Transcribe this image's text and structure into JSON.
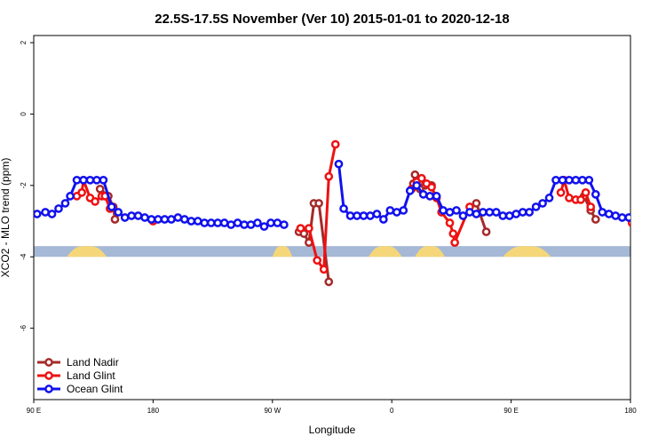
{
  "chart_data": {
    "type": "line",
    "title": "22.5S-17.5S November (Ver 10)   2015-01-01 to 2020-12-18",
    "xlabel": "Longitude",
    "ylabel": "XCO2 - MLO trend (ppm)",
    "xlim": [
      0,
      360
    ],
    "ylim": [
      -8,
      2.2
    ],
    "x_ticks": [
      {
        "value": 0,
        "label": "90 E"
      },
      {
        "value": 72,
        "label": "180"
      },
      {
        "value": 144,
        "label": "90 W"
      },
      {
        "value": 216,
        "label": "0"
      },
      {
        "value": 288,
        "label": "90 E"
      },
      {
        "value": 360,
        "label": "180"
      }
    ],
    "y_ticks": [
      {
        "value": 2,
        "label": "2"
      },
      {
        "value": 0,
        "label": "0"
      },
      {
        "value": -2,
        "label": "-2"
      },
      {
        "value": -4,
        "label": "-4"
      },
      {
        "value": -6,
        "label": "-6"
      }
    ],
    "grid": false,
    "legend_position": "bottom-left",
    "land_mask_colors": {
      "ocean": "#a5b8d6",
      "land": "#f5d77a"
    },
    "series": [
      {
        "name": "Land Nadir",
        "color": "#a52a2a",
        "points": [
          [
            40,
            -2.1
          ],
          [
            45,
            -2.3
          ],
          [
            48,
            -2.6
          ],
          [
            49,
            -2.95
          ],
          [
            160,
            -3.3
          ],
          [
            163,
            -3.35
          ],
          [
            166,
            -3.6
          ],
          [
            169,
            -2.5
          ],
          [
            172,
            -2.5
          ],
          [
            178,
            -4.7
          ],
          [
            229,
            -1.95
          ],
          [
            230,
            -1.7
          ],
          [
            233,
            -2.1
          ],
          [
            236,
            -2.0
          ],
          [
            240,
            -2.0
          ],
          [
            242,
            -2.3
          ],
          [
            267,
            -2.5
          ],
          [
            273,
            -3.3
          ],
          [
            332,
            -2.3
          ],
          [
            336,
            -2.7
          ],
          [
            339,
            -2.95
          ],
          [
            361,
            -3.05
          ]
        ]
      },
      {
        "name": "Land Glint",
        "color": "#ee1111",
        "points": [
          [
            26,
            -2.3
          ],
          [
            29,
            -2.2
          ],
          [
            30,
            -1.85
          ],
          [
            34,
            -2.35
          ],
          [
            37,
            -2.45
          ],
          [
            41,
            -2.3
          ],
          [
            43,
            -2.3
          ],
          [
            46,
            -2.65
          ],
          [
            72,
            -3.0
          ],
          [
            161,
            -3.2
          ],
          [
            166,
            -3.2
          ],
          [
            171,
            -4.1
          ],
          [
            175,
            -4.35
          ],
          [
            178,
            -1.75
          ],
          [
            182,
            -0.85
          ],
          [
            228,
            -2.1
          ],
          [
            231,
            -1.9
          ],
          [
            234,
            -1.8
          ],
          [
            237,
            -1.95
          ],
          [
            240,
            -2.05
          ],
          [
            243,
            -2.35
          ],
          [
            246,
            -2.75
          ],
          [
            251,
            -3.05
          ],
          [
            253,
            -3.35
          ],
          [
            254,
            -3.6
          ],
          [
            263,
            -2.6
          ],
          [
            318,
            -2.2
          ],
          [
            320,
            -1.85
          ],
          [
            323,
            -2.35
          ],
          [
            327,
            -2.4
          ],
          [
            330,
            -2.4
          ],
          [
            333,
            -2.2
          ],
          [
            336,
            -2.6
          ],
          [
            361,
            -3.05
          ]
        ]
      },
      {
        "name": "Ocean Glint",
        "color": "#1111ee",
        "points": [
          [
            2,
            -2.8
          ],
          [
            7,
            -2.75
          ],
          [
            11,
            -2.8
          ],
          [
            15,
            -2.65
          ],
          [
            19,
            -2.5
          ],
          [
            22,
            -2.3
          ],
          [
            26,
            -1.85
          ],
          [
            30,
            -1.85
          ],
          [
            34,
            -1.85
          ],
          [
            38,
            -1.85
          ],
          [
            42,
            -1.85
          ],
          [
            47,
            -2.6
          ],
          [
            51,
            -2.75
          ],
          [
            55,
            -2.9
          ],
          [
            59,
            -2.85
          ],
          [
            63,
            -2.85
          ],
          [
            67,
            -2.9
          ],
          [
            71,
            -2.95
          ],
          [
            75,
            -2.95
          ],
          [
            79,
            -2.95
          ],
          [
            83,
            -2.95
          ],
          [
            87,
            -2.9
          ],
          [
            91,
            -2.95
          ],
          [
            95,
            -3.0
          ],
          [
            99,
            -3.0
          ],
          [
            103,
            -3.05
          ],
          [
            107,
            -3.05
          ],
          [
            111,
            -3.05
          ],
          [
            115,
            -3.05
          ],
          [
            119,
            -3.1
          ],
          [
            123,
            -3.05
          ],
          [
            127,
            -3.1
          ],
          [
            131,
            -3.1
          ],
          [
            135,
            -3.05
          ],
          [
            139,
            -3.15
          ],
          [
            143,
            -3.05
          ],
          [
            147,
            -3.05
          ],
          [
            151,
            -3.1
          ],
          [
            184,
            -1.4
          ],
          [
            187,
            -2.65
          ],
          [
            191,
            -2.85
          ],
          [
            195,
            -2.85
          ],
          [
            199,
            -2.85
          ],
          [
            203,
            -2.85
          ],
          [
            207,
            -2.8
          ],
          [
            211,
            -2.95
          ],
          [
            215,
            -2.7
          ],
          [
            219,
            -2.75
          ],
          [
            223,
            -2.7
          ],
          [
            227,
            -2.15
          ],
          [
            231,
            -2.0
          ],
          [
            235,
            -2.25
          ],
          [
            239,
            -2.3
          ],
          [
            243,
            -2.3
          ],
          [
            247,
            -2.7
          ],
          [
            251,
            -2.75
          ],
          [
            255,
            -2.7
          ],
          [
            259,
            -2.85
          ],
          [
            263,
            -2.75
          ],
          [
            267,
            -2.8
          ],
          [
            271,
            -2.75
          ],
          [
            275,
            -2.75
          ],
          [
            279,
            -2.75
          ],
          [
            283,
            -2.85
          ],
          [
            287,
            -2.85
          ],
          [
            291,
            -2.8
          ],
          [
            295,
            -2.75
          ],
          [
            299,
            -2.75
          ],
          [
            303,
            -2.6
          ],
          [
            307,
            -2.5
          ],
          [
            311,
            -2.35
          ],
          [
            315,
            -1.85
          ],
          [
            319,
            -1.85
          ],
          [
            323,
            -1.85
          ],
          [
            327,
            -1.85
          ],
          [
            331,
            -1.85
          ],
          [
            335,
            -1.85
          ],
          [
            339,
            -2.25
          ],
          [
            343,
            -2.75
          ],
          [
            347,
            -2.8
          ],
          [
            351,
            -2.85
          ],
          [
            355,
            -2.9
          ],
          [
            359,
            -2.9
          ]
        ]
      }
    ]
  }
}
